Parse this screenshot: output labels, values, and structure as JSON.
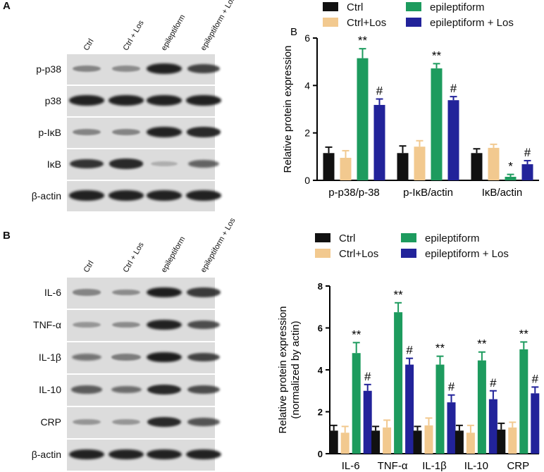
{
  "panel_a": {
    "letter": "A",
    "lanes": [
      "Ctrl",
      "Ctrl + Los",
      "epileptiform",
      "epileptiform + Los"
    ],
    "blots": [
      {
        "label": "p-p38",
        "intensity": [
          0.35,
          0.3,
          0.95,
          0.75
        ]
      },
      {
        "label": "p38",
        "intensity": [
          0.95,
          0.95,
          0.95,
          0.95
        ]
      },
      {
        "label": "p-IκB",
        "intensity": [
          0.35,
          0.35,
          0.95,
          0.9
        ]
      },
      {
        "label": "IκB",
        "intensity": [
          0.85,
          0.9,
          0.1,
          0.55
        ]
      },
      {
        "label": "β-actin",
        "intensity": [
          0.95,
          0.95,
          0.95,
          0.95
        ]
      }
    ]
  },
  "panel_b": {
    "letter": "B",
    "lanes": [
      "Ctrl",
      "Ctrl + Los",
      "epileptiform",
      "epileptiform + Los"
    ],
    "blots": [
      {
        "label": "IL-6",
        "intensity": [
          0.35,
          0.3,
          0.98,
          0.8
        ]
      },
      {
        "label": "TNF-α",
        "intensity": [
          0.25,
          0.3,
          0.95,
          0.7
        ]
      },
      {
        "label": "IL-1β",
        "intensity": [
          0.45,
          0.4,
          0.98,
          0.75
        ]
      },
      {
        "label": "IL-10",
        "intensity": [
          0.6,
          0.5,
          0.9,
          0.7
        ]
      },
      {
        "label": "CRP",
        "intensity": [
          0.25,
          0.25,
          0.9,
          0.65
        ]
      },
      {
        "label": "β-actin",
        "intensity": [
          0.95,
          0.95,
          0.95,
          0.95
        ]
      }
    ]
  },
  "colors": {
    "Ctrl": "#111111",
    "Ctrl+Los": "#f2c98f",
    "epileptiform": "#1d9b5e",
    "epileptiform + Los": "#22239a"
  },
  "chart_data": [
    {
      "type": "bar",
      "panel_letter": "B",
      "categories": [
        "p-p38/p-38",
        "p-IκB/actin",
        "IκB/actin"
      ],
      "ylabel": "Relative protein expression",
      "ylim": [
        0,
        6
      ],
      "yticks": [
        0,
        2,
        4,
        6
      ],
      "legend_position": "top",
      "series": [
        {
          "name": "Ctrl",
          "values": [
            1.15,
            1.15,
            1.15
          ],
          "errors": [
            0.25,
            0.3,
            0.18
          ]
        },
        {
          "name": "Ctrl+Los",
          "values": [
            0.95,
            1.42,
            1.37
          ],
          "errors": [
            0.3,
            0.25,
            0.15
          ]
        },
        {
          "name": "epileptiform",
          "values": [
            5.15,
            4.72,
            0.15
          ],
          "errors": [
            0.4,
            0.2,
            0.1
          ]
        },
        {
          "name": "epileptiform + Los",
          "values": [
            3.18,
            3.38,
            0.68
          ],
          "errors": [
            0.25,
            0.15,
            0.15
          ]
        }
      ],
      "annotations": [
        {
          "category": 0,
          "series": 2,
          "text": "**"
        },
        {
          "category": 0,
          "series": 3,
          "text": "#"
        },
        {
          "category": 1,
          "series": 2,
          "text": "**"
        },
        {
          "category": 1,
          "series": 3,
          "text": "#"
        },
        {
          "category": 2,
          "series": 2,
          "text": "*"
        },
        {
          "category": 2,
          "series": 3,
          "text": "#"
        }
      ]
    },
    {
      "type": "bar",
      "categories": [
        "IL-6",
        "TNF-α",
        "IL-1β",
        "IL-10",
        "CRP"
      ],
      "ylabel": "Relative protein expression",
      "ylabel2": "(normalized by actin)",
      "ylim": [
        0,
        8
      ],
      "yticks": [
        0,
        2,
        4,
        6,
        8
      ],
      "legend_position": "top",
      "series": [
        {
          "name": "Ctrl",
          "values": [
            1.1,
            1.1,
            1.1,
            1.1,
            1.15
          ],
          "errors": [
            0.25,
            0.2,
            0.2,
            0.25,
            0.3
          ]
        },
        {
          "name": "Ctrl+Los",
          "values": [
            1.0,
            1.25,
            1.35,
            1.0,
            1.25
          ],
          "errors": [
            0.3,
            0.35,
            0.35,
            0.35,
            0.25
          ]
        },
        {
          "name": "epileptiform",
          "values": [
            4.8,
            6.75,
            4.25,
            4.45,
            4.98
          ],
          "errors": [
            0.5,
            0.45,
            0.4,
            0.4,
            0.35
          ]
        },
        {
          "name": "epileptiform + Los",
          "values": [
            3.0,
            4.25,
            2.45,
            2.6,
            2.88
          ],
          "errors": [
            0.3,
            0.3,
            0.35,
            0.4,
            0.3
          ]
        }
      ],
      "annotations": [
        {
          "category": 0,
          "series": 2,
          "text": "**"
        },
        {
          "category": 0,
          "series": 3,
          "text": "#"
        },
        {
          "category": 1,
          "series": 2,
          "text": "**"
        },
        {
          "category": 1,
          "series": 3,
          "text": "#"
        },
        {
          "category": 2,
          "series": 2,
          "text": "**"
        },
        {
          "category": 2,
          "series": 3,
          "text": "#"
        },
        {
          "category": 3,
          "series": 2,
          "text": "**"
        },
        {
          "category": 3,
          "series": 3,
          "text": "#"
        },
        {
          "category": 4,
          "series": 2,
          "text": "**"
        },
        {
          "category": 4,
          "series": 3,
          "text": "#"
        }
      ]
    }
  ]
}
